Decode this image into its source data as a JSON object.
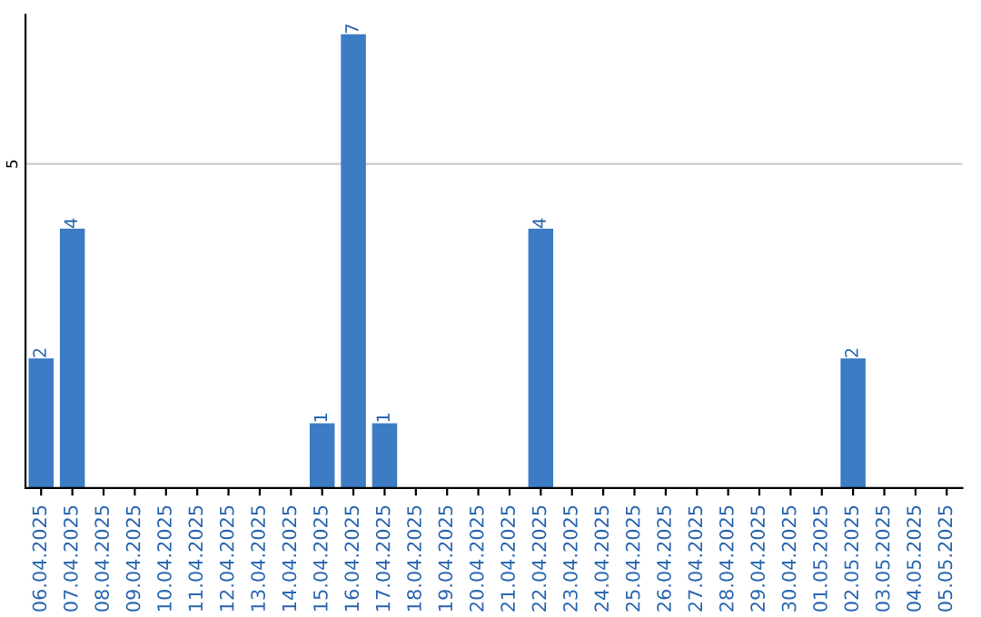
{
  "chart_data": {
    "type": "bar",
    "categories": [
      "06.04.2025",
      "07.04.2025",
      "08.04.2025",
      "09.04.2025",
      "10.04.2025",
      "11.04.2025",
      "12.04.2025",
      "13.04.2025",
      "14.04.2025",
      "15.04.2025",
      "16.04.2025",
      "17.04.2025",
      "18.04.2025",
      "19.04.2025",
      "20.04.2025",
      "21.04.2025",
      "22.04.2025",
      "23.04.2025",
      "24.04.2025",
      "25.04.2025",
      "26.04.2025",
      "27.04.2025",
      "28.04.2025",
      "29.04.2025",
      "30.04.2025",
      "01.05.2025",
      "02.05.2025",
      "03.05.2025",
      "04.05.2025",
      "05.05.2025"
    ],
    "values": [
      2,
      4,
      0,
      0,
      0,
      0,
      0,
      0,
      0,
      1,
      7,
      1,
      0,
      0,
      0,
      0,
      4,
      0,
      0,
      0,
      0,
      0,
      0,
      0,
      0,
      0,
      2,
      0,
      0,
      0
    ],
    "value_labels": [
      "2",
      "4",
      null,
      null,
      null,
      null,
      null,
      null,
      null,
      "1",
      "7",
      "1",
      null,
      null,
      null,
      null,
      "4",
      null,
      null,
      null,
      null,
      null,
      null,
      null,
      null,
      null,
      "2",
      null,
      null,
      null
    ],
    "color": "#3b7cc4",
    "ylim": [
      0,
      7.3
    ],
    "yticks": [
      5
    ],
    "grid": "y"
  }
}
